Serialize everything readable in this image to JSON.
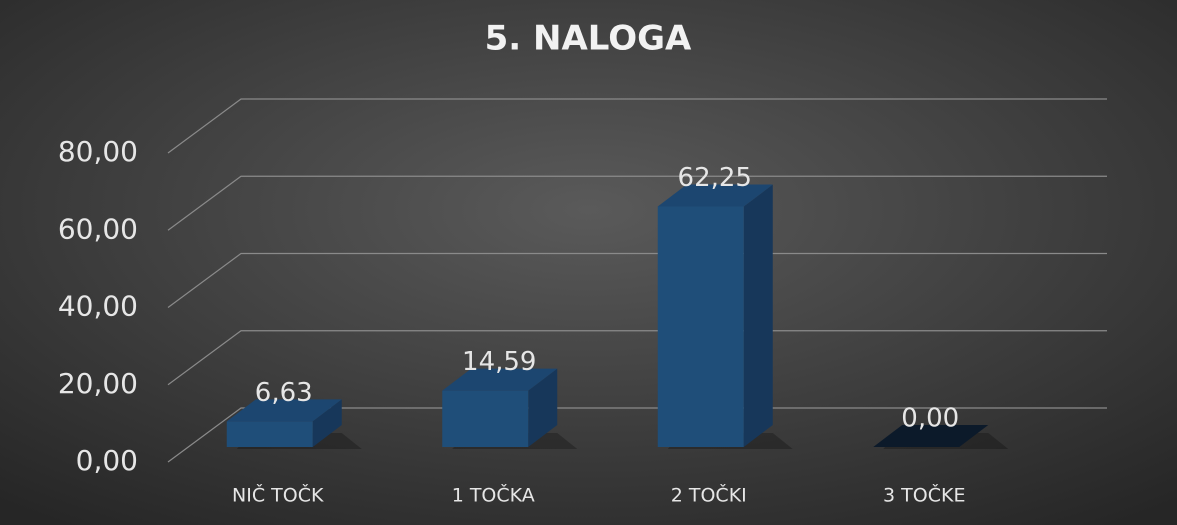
{
  "chart_data": {
    "type": "bar3d",
    "title": "5. NALOGA",
    "categories": [
      "NIČ TOČK",
      "1 TOČKA",
      "2 TOČKI",
      "3 TOČKE"
    ],
    "values": [
      6.63,
      14.59,
      62.25,
      0
    ],
    "value_labels": [
      "6,63",
      "14,59",
      "62,25",
      "0,00"
    ],
    "color": "#1f4e79",
    "ylim": [
      0,
      80
    ],
    "yticks": [
      {
        "value": 0,
        "label": "0,00"
      },
      {
        "value": 20,
        "label": "20,00"
      },
      {
        "value": 40,
        "label": "40,00"
      },
      {
        "value": 60,
        "label": "60,00"
      },
      {
        "value": 80,
        "label": "80,00"
      }
    ],
    "grid": true
  }
}
